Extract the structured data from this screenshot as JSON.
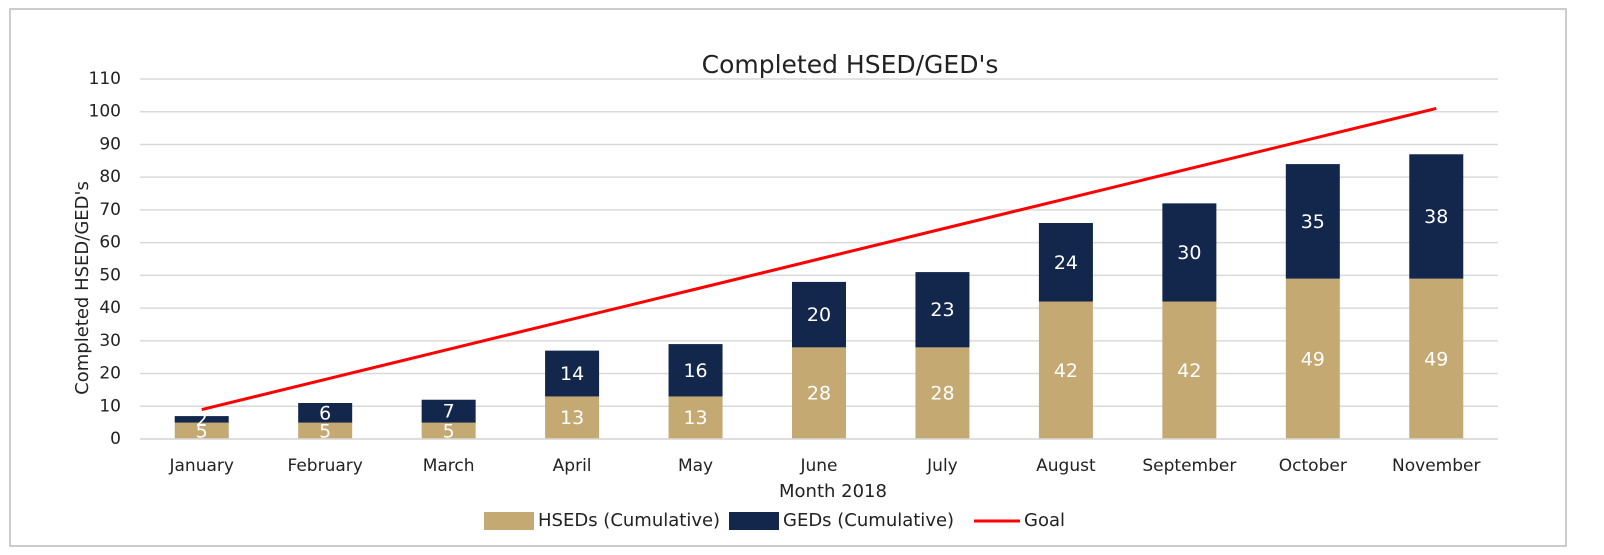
{
  "chart_data": {
    "type": "bar",
    "stacked": true,
    "title": "Completed HSED/GED's",
    "x_label": "Month 2018",
    "y_label": "Completed HSED/GED's",
    "categories": [
      "January",
      "February",
      "March",
      "April",
      "May",
      "June",
      "July",
      "August",
      "September",
      "October",
      "November"
    ],
    "series": [
      {
        "name": "HSEDs (Cumulative)",
        "color": "#c4a972",
        "values": [
          5,
          5,
          5,
          13,
          13,
          28,
          28,
          42,
          42,
          49,
          49
        ]
      },
      {
        "name": "GEDs (Cumulative)",
        "color": "#13264b",
        "values": [
          2,
          6,
          7,
          14,
          16,
          20,
          23,
          24,
          30,
          35,
          38
        ]
      },
      {
        "name": "Goal",
        "color": "#ff0000",
        "type": "line",
        "values": [
          9,
          18.2,
          27.4,
          36.6,
          45.8,
          55,
          64.2,
          73.4,
          82.6,
          91.8,
          101
        ]
      }
    ],
    "ylim": [
      0,
      110
    ],
    "yticks": [
      0,
      10,
      20,
      30,
      40,
      50,
      60,
      70,
      80,
      90,
      100,
      110
    ],
    "grid": true,
    "legend": "bottom"
  }
}
